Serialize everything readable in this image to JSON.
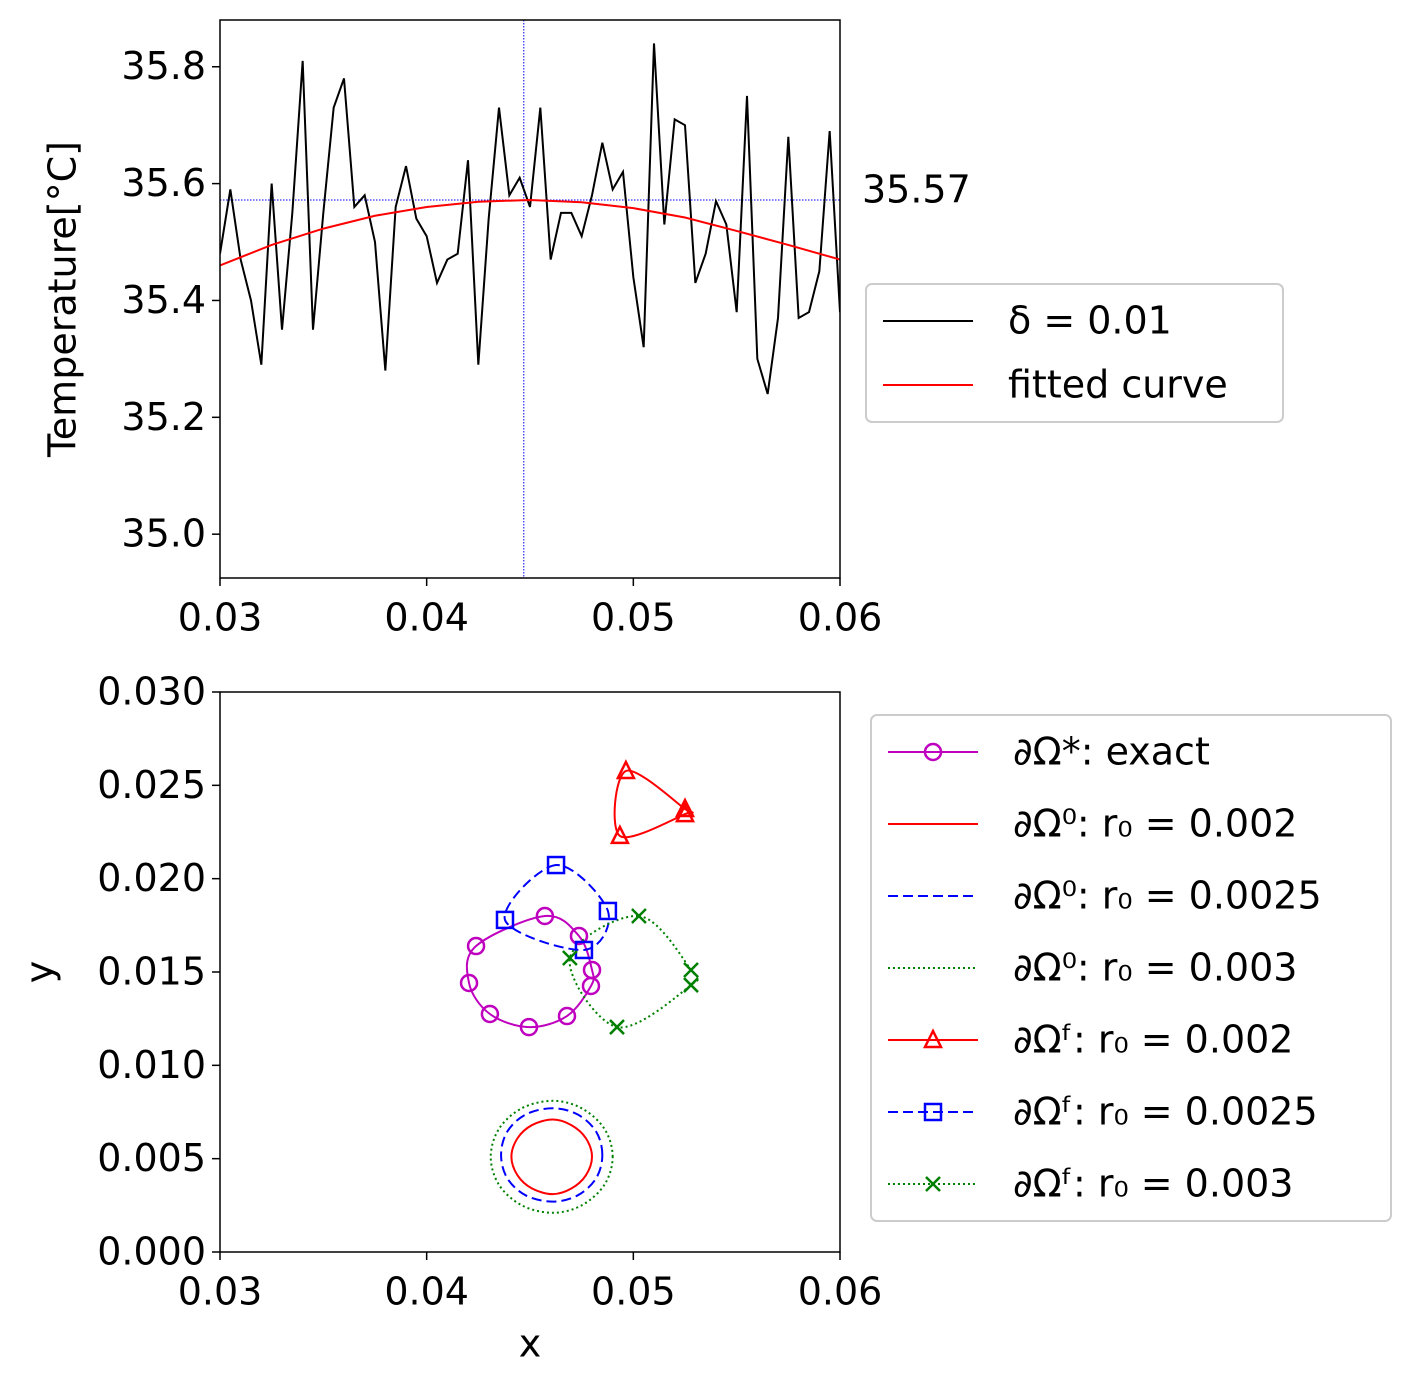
{
  "chart_data": [
    {
      "type": "line",
      "ylabel": "Temperature[°C]",
      "xlim": [
        0.03,
        0.06
      ],
      "xticks": [
        0.03,
        0.04,
        0.05,
        0.06
      ],
      "ylim": [
        34.925,
        35.88
      ],
      "yticks": [
        {
          "value": 35.0,
          "label": "35.0"
        },
        35.2,
        35.4,
        35.6,
        35.8
      ],
      "legend": "right",
      "series": [
        {
          "name": "δ = 0.01",
          "color": "#000000",
          "x": [
            0.03,
            0.0305,
            0.031,
            0.0315,
            0.032,
            0.0325,
            0.033,
            0.0335,
            0.034,
            0.0345,
            0.035,
            0.0355,
            0.036,
            0.0365,
            0.037,
            0.0375,
            0.038,
            0.0385,
            0.039,
            0.0395,
            0.04,
            0.0405,
            0.041,
            0.0415,
            0.042,
            0.0425,
            0.043,
            0.0435,
            0.044,
            0.0445,
            0.045,
            0.0455,
            0.046,
            0.0465,
            0.047,
            0.0475,
            0.048,
            0.0485,
            0.049,
            0.0495,
            0.05,
            0.0505,
            0.051,
            0.0515,
            0.052,
            0.0525,
            0.053,
            0.0535,
            0.054,
            0.0545,
            0.055,
            0.0555,
            0.056,
            0.0565,
            0.057,
            0.0575,
            0.058,
            0.0585,
            0.059,
            0.0595,
            0.06
          ],
          "values": [
            35.48,
            35.59,
            35.47,
            35.4,
            35.29,
            35.6,
            35.35,
            35.55,
            35.81,
            35.35,
            35.55,
            35.73,
            35.78,
            35.56,
            35.58,
            35.5,
            35.28,
            35.56,
            35.63,
            35.54,
            35.51,
            35.43,
            35.47,
            35.48,
            35.64,
            35.29,
            35.54,
            35.73,
            35.58,
            35.61,
            35.56,
            35.73,
            35.47,
            35.55,
            35.55,
            35.51,
            35.58,
            35.67,
            35.59,
            35.62,
            35.44,
            35.32,
            35.84,
            35.53,
            35.71,
            35.7,
            35.43,
            35.48,
            35.57,
            35.53,
            35.38,
            35.75,
            35.3,
            35.24,
            35.37,
            35.68,
            35.37,
            35.38,
            35.45,
            35.69,
            35.38
          ]
        },
        {
          "name": "fitted curve",
          "color": "#ff0000",
          "x": [
            0.03,
            0.0325,
            0.035,
            0.0375,
            0.04,
            0.0425,
            0.045,
            0.0475,
            0.05,
            0.0525,
            0.055,
            0.0575,
            0.06
          ],
          "values": [
            35.46,
            35.495,
            35.523,
            35.545,
            35.56,
            35.569,
            35.572,
            35.568,
            35.558,
            35.542,
            35.519,
            35.495,
            35.47
          ]
        }
      ],
      "annotation": {
        "x": 0.0447,
        "y": 35.572,
        "label": "35.57",
        "color": "#0000ff"
      }
    },
    {
      "type": "line",
      "xlabel": "x",
      "ylabel": "y",
      "xlim": [
        0.03,
        0.06
      ],
      "xticks": [
        0.03,
        0.04,
        0.05,
        0.06
      ],
      "ylim": [
        0,
        0.03
      ],
      "yticks": [
        {
          "value": 0,
          "label": "0.000"
        },
        0.005,
        {
          "value": 0.01,
          "label": "0.010"
        },
        0.015,
        {
          "value": 0.02,
          "label": "0.020"
        },
        0.025,
        {
          "value": 0.03,
          "label": "0.030"
        }
      ],
      "legend": "right",
      "series": [
        {
          "name": "∂Ω*: exact",
          "color": "#bf00bf",
          "marker": "circle",
          "dash": "solid",
          "x": [
            0.04572,
            0.04239,
            0.04205,
            0.04306,
            0.04495,
            0.04679,
            0.04795,
            0.048,
            0.04737
          ],
          "values": [
            0.018,
            0.01639,
            0.01441,
            0.01275,
            0.01205,
            0.01264,
            0.01425,
            0.01511,
            0.01693
          ]
        },
        {
          "name": "∂Ω⁰: r₀ = 0.002",
          "color": "#ff0000",
          "marker": "none",
          "dash": "solid",
          "x": [
            0.048,
            0.0477,
            0.047,
            0.0461,
            0.0451,
            0.0444,
            0.0441,
            0.0444,
            0.0451,
            0.0461,
            0.047,
            0.0477
          ],
          "values": [
            0.0051,
            0.0061,
            0.0068,
            0.0071,
            0.0068,
            0.0061,
            0.0051,
            0.0041,
            0.0034,
            0.0031,
            0.0034,
            0.0041
          ]
        },
        {
          "name": "∂Ω⁰: r₀ = 0.0025",
          "color": "#0000ff",
          "marker": "none",
          "dash": "dashed",
          "x": [
            0.0485,
            0.0482,
            0.0473,
            0.0461,
            0.0448,
            0.0439,
            0.0436,
            0.0439,
            0.0448,
            0.0461,
            0.0473,
            0.0482
          ],
          "values": [
            0.0052,
            0.00645,
            0.00737,
            0.0077,
            0.00737,
            0.00645,
            0.0052,
            0.00395,
            0.00303,
            0.0027,
            0.00303,
            0.00395
          ]
        },
        {
          "name": "∂Ω⁰: r₀ = 0.003",
          "color": "#008000",
          "marker": "none",
          "dash": "dotted",
          "x": [
            0.049,
            0.0486,
            0.0475,
            0.0461,
            0.0446,
            0.0435,
            0.0431,
            0.0435,
            0.0446,
            0.0461,
            0.0475,
            0.0486
          ],
          "values": [
            0.0051,
            0.0066,
            0.0077,
            0.0081,
            0.0077,
            0.0066,
            0.0051,
            0.0036,
            0.0025,
            0.0021,
            0.0025,
            0.0036
          ]
        },
        {
          "name": "∂Ωᶠ: r₀ = 0.002",
          "color": "#ff0000",
          "marker": "triangle",
          "dash": "solid",
          "x": [
            0.04964,
            0.0525,
            0.0525,
            0.04935
          ],
          "values": [
            0.02577,
            0.02373,
            0.02346,
            0.02229
          ]
        },
        {
          "name": "∂Ωᶠ: r₀ = 0.0025",
          "color": "#0000ff",
          "marker": "square",
          "dash": "dashed",
          "x": [
            0.04626,
            0.04379,
            0.04761,
            0.04877
          ],
          "values": [
            0.02073,
            0.01779,
            0.01618,
            0.01827
          ]
        },
        {
          "name": "∂Ωᶠ: r₀ = 0.003",
          "color": "#008000",
          "marker": "x",
          "dash": "dotted",
          "x": [
            0.05027,
            0.05279,
            0.05279,
            0.04921,
            0.04693
          ],
          "values": [
            0.018,
            0.01511,
            0.0143,
            0.01205,
            0.01575
          ]
        }
      ]
    }
  ]
}
